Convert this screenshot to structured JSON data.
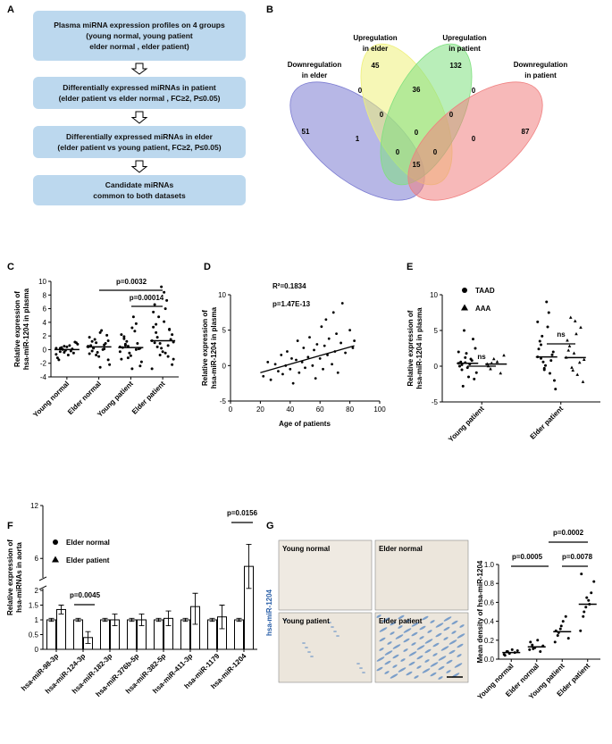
{
  "panel_labels": [
    "A",
    "B",
    "C",
    "D",
    "E",
    "F",
    "G"
  ],
  "flowchart": {
    "boxes": [
      [
        "Plasma miRNA expression profiles on 4 groups",
        "(young normal,  young patient",
        "elder normal , elder patient)"
      ],
      [
        "Differentially expressed miRNAs in patient",
        "(elder patient vs elder normal , FC≥2, P≤0.05)"
      ],
      [
        "Differentially expressed miRNAs in elder",
        "(elder patient vs young patient, FC≥2, P≤0.05)"
      ],
      [
        "Candidate miRNAs",
        "common to both datasets"
      ]
    ]
  },
  "venn": {
    "sets": [
      {
        "name": [
          "Downregulation",
          "in elder"
        ],
        "color": "#7b7bd1"
      },
      {
        "name": [
          "Upregulation",
          "in elder"
        ],
        "color": "#eef07a"
      },
      {
        "name": [
          "Upregulation",
          "in patient"
        ],
        "color": "#7fe07f"
      },
      {
        "name": [
          "Downregulation",
          "in patient"
        ],
        "color": "#f07f7f"
      }
    ],
    "regions": [
      51,
      45,
      132,
      87,
      0,
      36,
      0,
      0,
      0,
      1,
      0,
      0,
      0,
      0,
      15
    ]
  },
  "micrograph": {
    "stain": "hsa-miR-1204",
    "panels": [
      "Young normal",
      "Elder normal",
      "Young patient",
      "Elder patient"
    ]
  },
  "chart_data": [
    {
      "type": "strip",
      "categories": [
        "Young normal",
        "Elder normal",
        "Young patient",
        "Elder patient"
      ],
      "values": [
        [
          0.2,
          -0.3,
          0.5,
          -0.8,
          0.1,
          1.0,
          -1.2,
          0.3,
          -0.1,
          0.6,
          -0.5,
          0.8,
          -1.5,
          0.0,
          0.4,
          -0.2,
          1.1,
          -0.7,
          0.2,
          -0.4
        ],
        [
          0.5,
          1.2,
          -0.8,
          2.5,
          0.1,
          -1.5,
          1.8,
          0.3,
          -0.4,
          2.8,
          0.9,
          -2.2,
          0.6,
          1.5,
          -1.0,
          0.0,
          2.1,
          0.4,
          -0.2,
          1.0,
          -2.6,
          0.7,
          1.3,
          -0.6,
          0.2
        ],
        [
          0.4,
          1.6,
          -1.2,
          3.2,
          0.0,
          -2.4,
          2.2,
          0.6,
          -0.5,
          4.8,
          0.9,
          -1.8,
          0.3,
          1.2,
          -0.9,
          2.7,
          0.1,
          -0.3,
          1.9,
          0.5,
          -2.8,
          3.8,
          0.2,
          -1.4,
          0.8
        ],
        [
          1.3,
          2.5,
          -0.8,
          4.1,
          0.6,
          -2.2,
          3.3,
          1.8,
          0.2,
          6.0,
          2.9,
          -1.4,
          1.0,
          4.8,
          -0.3,
          7.2,
          1.5,
          -2.8,
          3.7,
          0.9,
          8.4,
          -1.0,
          2.2,
          5.5,
          0.4,
          9.2,
          -0.5,
          3.0,
          1.1,
          6.6
        ]
      ],
      "center": [
        0.0,
        0.4,
        0.3,
        1.3
      ],
      "ylabel": [
        "Relative expression of",
        "hsa-miR-1204 in plasma"
      ],
      "ylim": [
        -4,
        10
      ],
      "yticks": [
        -4,
        -2,
        0,
        2,
        4,
        6,
        8,
        10
      ],
      "annotations": [
        "p=0.0032",
        "p=0.00014"
      ]
    },
    {
      "type": "scatter",
      "x": [
        22,
        25,
        27,
        30,
        32,
        34,
        35,
        37,
        38,
        40,
        41,
        42,
        44,
        45,
        46,
        48,
        49,
        50,
        52,
        53,
        55,
        56,
        57,
        58,
        60,
        61,
        62,
        63,
        64,
        65,
        66,
        68,
        69,
        70,
        71,
        72,
        74,
        75,
        77,
        80,
        82,
        83
      ],
      "y": [
        -1.5,
        0.5,
        -2.0,
        0.2,
        -0.8,
        1.5,
        -1.2,
        0.0,
        2.0,
        -0.5,
        1.0,
        -2.5,
        0.8,
        3.5,
        -1.0,
        0.5,
        2.5,
        -0.3,
        1.2,
        4.0,
        0.0,
        2.2,
        -1.8,
        3.0,
        1.0,
        5.5,
        -0.5,
        2.8,
        6.5,
        1.5,
        3.8,
        0.2,
        7.5,
        2.0,
        4.5,
        -1.0,
        3.2,
        8.8,
        1.8,
        5.0,
        2.5,
        3.5
      ],
      "fit": {
        "x": [
          20,
          83
        ],
        "y": [
          -1.0,
          2.8
        ]
      },
      "xlabel": "Age of patients",
      "ylabel": [
        "Relative expression of",
        "hsa-miR-1204 in plasma"
      ],
      "xlim": [
        0,
        100
      ],
      "xticks": [
        0,
        20,
        40,
        60,
        80,
        100
      ],
      "ylim": [
        -5,
        10
      ],
      "yticks": [
        -5,
        0,
        5,
        10
      ],
      "annotations": [
        "R²=0.1834",
        "p=1.47E-13"
      ]
    },
    {
      "type": "strip",
      "categories": [
        "Young patient",
        "Elder patient"
      ],
      "series": [
        {
          "name": "TAAD",
          "marker": "circle",
          "values": [
            [
              0.4,
              -0.5,
              1.2,
              -1.5,
              0.8,
              2.5,
              0.0,
              -2.8,
              1.8,
              0.3,
              3.8,
              -0.9,
              0.6,
              5.0,
              -0.2,
              1.0,
              -1.8,
              2.0,
              0.2,
              0.5
            ],
            [
              1.3,
              3.0,
              -0.5,
              5.5,
              0.8,
              -2.0,
              2.4,
              4.2,
              0.1,
              7.5,
              1.6,
              -3.2,
              3.5,
              0.6,
              9.0,
              -1.0,
              2.0,
              6.2,
              1.1,
              -0.3
            ]
          ],
          "center": [
            0.4,
            1.3
          ]
        },
        {
          "name": "AAA",
          "marker": "triangle",
          "values": [
            [
              0.3,
              -0.4,
              1.0,
              0.6,
              -1.0,
              1.5,
              0.0,
              0.4
            ],
            [
              1.2,
              2.8,
              -0.6,
              4.5,
              0.5,
              -2.2,
              3.6,
              6.8,
              1.8,
              -1.2,
              5.4,
              0.9,
              2.2,
              -0.2,
              6.3
            ]
          ],
          "center": [
            0.3,
            1.2
          ]
        }
      ],
      "ylabel": [
        "Relative expression of",
        "hsa-miR-1204 in plasma"
      ],
      "ylim": [
        -5,
        10
      ],
      "yticks": [
        -5,
        0,
        5,
        10
      ],
      "annotations": [
        "ns",
        "ns"
      ]
    },
    {
      "type": "bar",
      "categories": [
        "hsa-miR-98-3p",
        "hsa-miR-124-3p",
        "hsa-miR-182-3p",
        "hsa-miR-376b-5p",
        "hsa-miR-382-5p",
        "hsa-miR-411-3p",
        "hsa-miR-1179",
        "hsa-miR-1204"
      ],
      "series": [
        {
          "name": "Elder normal",
          "marker": "circle",
          "values": [
            1.0,
            1.0,
            1.0,
            1.0,
            1.0,
            1.0,
            1.0,
            1.0
          ],
          "errors": [
            0.05,
            0.05,
            0.05,
            0.05,
            0.05,
            0.05,
            0.05,
            0.05
          ]
        },
        {
          "name": "Elder patient",
          "marker": "triangle",
          "values": [
            1.35,
            0.4,
            1.0,
            1.0,
            1.05,
            1.45,
            1.1,
            5.1
          ],
          "errors": [
            0.15,
            0.2,
            0.2,
            0.2,
            0.25,
            0.6,
            0.4,
            2.5
          ]
        }
      ],
      "ylabel": [
        "Relative expression of",
        "hsa-miRNAs in aorta"
      ],
      "ylim": [
        0,
        12
      ],
      "ybreak": [
        2,
        4
      ],
      "yticks": [
        0,
        0.5,
        1,
        1.5,
        2,
        6,
        12
      ],
      "annotations": [
        "p=0.0045",
        "p=0.0156"
      ]
    },
    {
      "type": "strip",
      "categories": [
        "Young normal",
        "Elder normal",
        "Young patient",
        "Elder patient"
      ],
      "values": [
        [
          0.05,
          0.08,
          0.06,
          0.1,
          0.07,
          0.09,
          0.04,
          0.08
        ],
        [
          0.1,
          0.15,
          0.12,
          0.2,
          0.08,
          0.14,
          0.18,
          0.11
        ],
        [
          0.18,
          0.25,
          0.32,
          0.4,
          0.45,
          0.22,
          0.3,
          0.28,
          0.35
        ],
        [
          0.3,
          0.45,
          0.55,
          0.62,
          0.7,
          0.82,
          0.9,
          0.5,
          0.65,
          0.58
        ]
      ],
      "center": [
        0.07,
        0.13,
        0.29,
        0.58
      ],
      "ylabel": [
        "Mean density of hsa-miR-1204"
      ],
      "ylim": [
        0,
        1
      ],
      "yticks": [
        {
          "value": 0,
          "label": "0.0"
        },
        0.2,
        0.4,
        0.6,
        0.8,
        {
          "value": 1,
          "label": "1.0"
        }
      ],
      "annotations": [
        "p=0.0002",
        "p=0.0005",
        "p=0.0078"
      ]
    }
  ]
}
